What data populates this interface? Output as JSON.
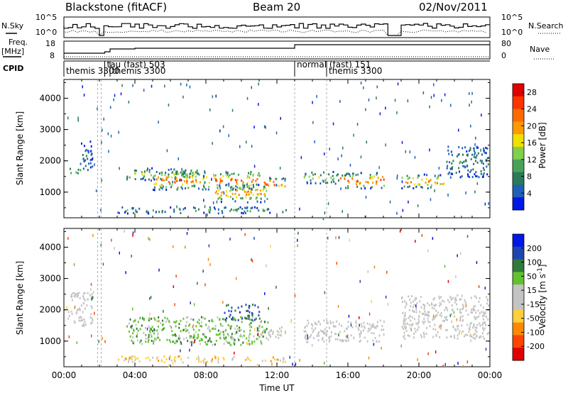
{
  "header": {
    "station": "Blackstone (fitACF)",
    "beam": "Beam 20",
    "date": "02/Nov/2011"
  },
  "noise_panel": {
    "left_label": "N.Sky",
    "right_label": "N.Search",
    "left_ticks": [
      "10^5",
      "10^0"
    ],
    "right_ticks": [
      "10^5",
      "10^0"
    ],
    "scale": "log"
  },
  "freq_panel": {
    "left_label": "Freq.",
    "left_unit": "[MHz]",
    "right_label": "Nave",
    "left_ticks": [
      "18",
      "8"
    ],
    "right_ticks": [
      "80",
      "0"
    ]
  },
  "cpid_panel": {
    "label": "CPID",
    "segments": [
      {
        "start": 0.0,
        "label": "themis 3300"
      },
      {
        "start": 2.3,
        "label": "tau (fast) 503"
      },
      {
        "start": 2.6,
        "label": "themis 3300"
      },
      {
        "start": 13.0,
        "label": "normal (fast) 151"
      },
      {
        "start": 14.8,
        "label": "themis 3300"
      }
    ]
  },
  "colors": {
    "power": [
      "#0018e6",
      "#1f5fb8",
      "#2a7a5a",
      "#49a357",
      "#7fd04a",
      "#f0e000",
      "#ff9900",
      "#ff6a00",
      "#ff3300",
      "#e00000"
    ],
    "velocity": [
      "#0018e6",
      "#2045b0",
      "#2e7a3a",
      "#62c22e",
      "#c4c4c4",
      "#c4c4c4",
      "#ffcf3c",
      "#ff8800",
      "#ff4400",
      "#e00000"
    ],
    "line": "#000000"
  },
  "chart_data": [
    {
      "type": "heatmap",
      "name": "power",
      "xlabel": "",
      "ylabel": "Slant Range [km]",
      "xlim": [
        0,
        24
      ],
      "ylim": [
        180,
        4600
      ],
      "yticks": [
        "1000",
        "2000",
        "3000",
        "4000"
      ],
      "xticks": [
        "00:00",
        "04:00",
        "08:00",
        "12:00",
        "16:00",
        "20:00",
        "00:00"
      ],
      "colorbar": {
        "label": "Power [dB]",
        "ticks": [
          "4",
          "8",
          "12",
          "16",
          "20",
          "24",
          "28"
        ],
        "range": [
          0,
          30
        ]
      },
      "bands": [
        {
          "t0": 0.2,
          "t1": 0.9,
          "r0": 1600,
          "r1": 1800,
          "peak": 14
        },
        {
          "t0": 0.9,
          "t1": 1.6,
          "r0": 1650,
          "r1": 2650,
          "peak": 6
        },
        {
          "t0": 3.5,
          "t1": 7.5,
          "r0": 1400,
          "r1": 1800,
          "peak": 14
        },
        {
          "t0": 5.0,
          "t1": 11.0,
          "r0": 1100,
          "r1": 1700,
          "peak": 24
        },
        {
          "t0": 8.5,
          "t1": 11.5,
          "r0": 700,
          "r1": 1300,
          "peak": 22
        },
        {
          "t0": 11.2,
          "t1": 12.5,
          "r0": 1100,
          "r1": 1500,
          "peak": 26
        },
        {
          "t0": 13.5,
          "t1": 15.5,
          "r0": 1300,
          "r1": 1700,
          "peak": 14
        },
        {
          "t0": 15.5,
          "t1": 18.0,
          "r0": 1150,
          "r1": 1650,
          "peak": 26
        },
        {
          "t0": 19.0,
          "t1": 21.5,
          "r0": 1150,
          "r1": 1600,
          "peak": 24
        },
        {
          "t0": 21.5,
          "t1": 23.9,
          "r0": 1500,
          "r1": 2500,
          "peak": 8
        },
        {
          "t0": 3.0,
          "t1": 12.5,
          "r0": 350,
          "r1": 550,
          "peak": 10
        }
      ]
    },
    {
      "type": "heatmap",
      "name": "velocity",
      "xlabel": "Time UT",
      "ylabel": "Slant Range [km]",
      "xlim": [
        0,
        24
      ],
      "ylim": [
        180,
        4600
      ],
      "yticks": [
        "1000",
        "2000",
        "3000",
        "4000"
      ],
      "xticks": [
        "00:00",
        "04:00",
        "08:00",
        "12:00",
        "16:00",
        "20:00",
        "00:00"
      ],
      "colorbar": {
        "label": "Velocity [m s^-1]",
        "ticks": [
          "200",
          "100",
          "50",
          "15",
          "-15",
          "-50",
          "-100",
          "-200"
        ],
        "range": [
          -250,
          250
        ]
      },
      "bands": [
        {
          "t0": 0.2,
          "t1": 1.6,
          "r0": 1500,
          "r1": 2600,
          "v": 0
        },
        {
          "t0": 3.5,
          "t1": 11.5,
          "r0": 900,
          "r1": 1800,
          "v": 70
        },
        {
          "t0": 9.0,
          "t1": 11.0,
          "r0": 1700,
          "r1": 2200,
          "v": 160
        },
        {
          "t0": 11.2,
          "t1": 12.5,
          "r0": 1100,
          "r1": 1500,
          "v": 0
        },
        {
          "t0": 13.5,
          "t1": 18.0,
          "r0": 1000,
          "r1": 1700,
          "v": 0
        },
        {
          "t0": 19.0,
          "t1": 23.9,
          "r0": 1100,
          "r1": 2500,
          "v": 0
        },
        {
          "t0": 3.0,
          "t1": 12.5,
          "r0": 350,
          "r1": 550,
          "v": -60
        }
      ]
    }
  ]
}
